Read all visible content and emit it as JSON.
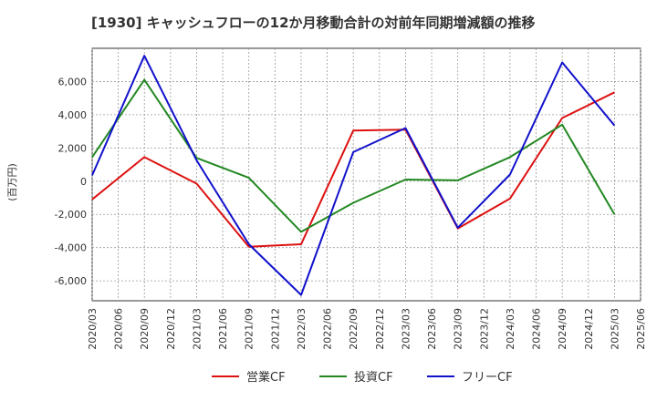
{
  "chart_data": {
    "type": "line",
    "title": "[1930]  キャッシュフローの12か月移動合計の対前年同期増減額の推移",
    "ylabel": "(百万円)",
    "xlabel": "",
    "ylim": [
      -7200,
      8000
    ],
    "yticks": [
      -6000,
      -4000,
      -2000,
      0,
      2000,
      4000,
      6000
    ],
    "ytick_labels": [
      "-6,000",
      "-4,000",
      "-2,000",
      "0",
      "2,000",
      "4,000",
      "6,000"
    ],
    "categories": [
      "2020/03",
      "2020/06",
      "2020/09",
      "2020/12",
      "2021/03",
      "2021/06",
      "2021/09",
      "2021/12",
      "2022/03",
      "2022/06",
      "2022/09",
      "2022/12",
      "2023/03",
      "2023/06",
      "2023/09",
      "2023/12",
      "2024/03",
      "2024/06",
      "2024/09",
      "2024/12",
      "2025/03",
      "2025/06"
    ],
    "grid": true,
    "legend_position": "bottom",
    "series": [
      {
        "name": "営業CF",
        "color": "#dd1111",
        "values": [
          -1100,
          null,
          1450,
          null,
          -150,
          null,
          -3950,
          null,
          -3800,
          null,
          3050,
          null,
          3100,
          null,
          -2850,
          null,
          -1050,
          null,
          3800,
          null,
          5350,
          null
        ]
      },
      {
        "name": "投資CF",
        "color": "#228822",
        "values": [
          1450,
          null,
          6100,
          null,
          1400,
          null,
          200,
          null,
          -3050,
          null,
          -1300,
          null,
          100,
          null,
          50,
          null,
          1450,
          null,
          3400,
          null,
          -2000,
          null
        ]
      },
      {
        "name": "フリーCF",
        "color": "#1111cc",
        "values": [
          350,
          null,
          7550,
          null,
          1250,
          null,
          -3800,
          null,
          -6850,
          null,
          1750,
          null,
          3200,
          null,
          -2800,
          null,
          400,
          null,
          7150,
          null,
          3350,
          null
        ]
      }
    ]
  }
}
